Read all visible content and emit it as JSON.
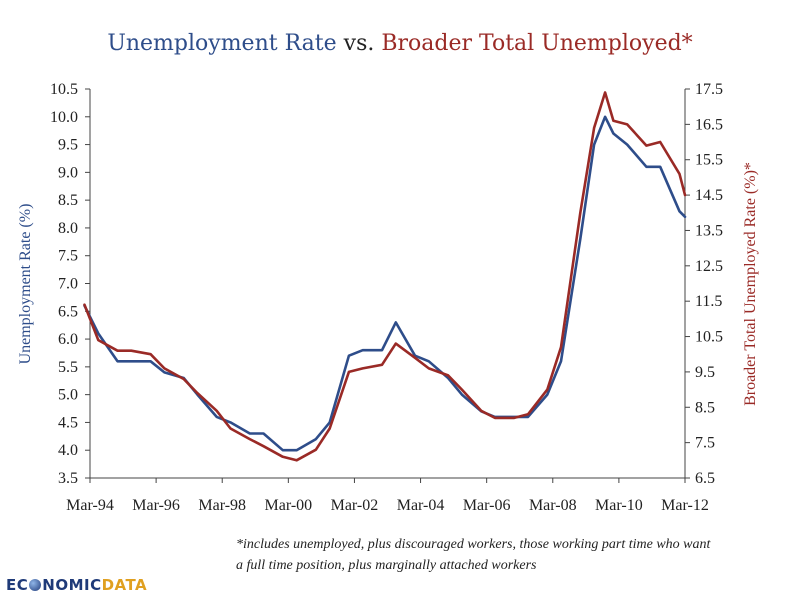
{
  "chart_data": {
    "type": "line",
    "title_part1": "Unemployment Rate",
    "title_mid": " vs. ",
    "title_part2": "Broader Total Unemployed*",
    "ylabel_left": "Unemployment Rate (%)",
    "ylabel_right": "Broader Total Unemployed Rate (%)*",
    "x_ticks": [
      "Mar-94",
      "Mar-96",
      "Mar-98",
      "Mar-00",
      "Mar-02",
      "Mar-04",
      "Mar-06",
      "Mar-08",
      "Mar-10",
      "Mar-12"
    ],
    "y_left_ticks": [
      "3.5",
      "4.0",
      "4.5",
      "5.0",
      "5.5",
      "6.0",
      "6.5",
      "7.0",
      "7.5",
      "8.0",
      "8.5",
      "9.0",
      "9.5",
      "10.0",
      "10.5"
    ],
    "y_right_ticks": [
      "6.5",
      "7.5",
      "8.5",
      "9.5",
      "10.5",
      "11.5",
      "12.5",
      "13.5",
      "14.5",
      "15.5",
      "16.5",
      "17.5"
    ],
    "ylim_left": [
      3.5,
      10.5
    ],
    "ylim_right": [
      6.5,
      17.5
    ],
    "series": [
      {
        "name": "Unemployment Rate",
        "axis": "left",
        "color": "#2e4d8a",
        "x": [
          "1994-01",
          "1994-06",
          "1995-01",
          "1995-06",
          "1996-01",
          "1996-06",
          "1997-01",
          "1997-06",
          "1998-01",
          "1998-06",
          "1999-01",
          "1999-06",
          "2000-01",
          "2000-06",
          "2001-01",
          "2001-06",
          "2002-01",
          "2002-06",
          "2003-01",
          "2003-06",
          "2004-01",
          "2004-06",
          "2005-01",
          "2005-06",
          "2006-01",
          "2006-06",
          "2007-01",
          "2007-06",
          "2008-01",
          "2008-06",
          "2009-01",
          "2009-06",
          "2009-10",
          "2010-01",
          "2010-06",
          "2011-01",
          "2011-06",
          "2012-01",
          "2012-03"
        ],
        "values": [
          6.6,
          6.1,
          5.6,
          5.6,
          5.6,
          5.4,
          5.3,
          5.0,
          4.6,
          4.5,
          4.3,
          4.3,
          4.0,
          4.0,
          4.2,
          4.5,
          5.7,
          5.8,
          5.8,
          6.3,
          5.7,
          5.6,
          5.3,
          5.0,
          4.7,
          4.6,
          4.6,
          4.6,
          5.0,
          5.6,
          7.8,
          9.5,
          10.0,
          9.7,
          9.5,
          9.1,
          9.1,
          8.3,
          8.2
        ]
      },
      {
        "name": "Broader Total Unemployed",
        "axis": "right",
        "color": "#9a2a26",
        "x": [
          "1994-01",
          "1994-06",
          "1995-01",
          "1995-06",
          "1996-01",
          "1996-06",
          "1997-01",
          "1997-06",
          "1998-01",
          "1998-06",
          "1999-01",
          "1999-06",
          "2000-01",
          "2000-06",
          "2001-01",
          "2001-06",
          "2002-01",
          "2002-06",
          "2003-01",
          "2003-06",
          "2004-01",
          "2004-06",
          "2005-01",
          "2005-06",
          "2006-01",
          "2006-06",
          "2007-01",
          "2007-06",
          "2008-01",
          "2008-06",
          "2009-01",
          "2009-06",
          "2009-10",
          "2010-01",
          "2010-06",
          "2011-01",
          "2011-06",
          "2012-01",
          "2012-03"
        ],
        "values": [
          11.4,
          10.4,
          10.1,
          10.1,
          10.0,
          9.6,
          9.3,
          8.9,
          8.4,
          7.9,
          7.6,
          7.4,
          7.1,
          7.0,
          7.3,
          7.9,
          9.5,
          9.6,
          9.7,
          10.3,
          9.9,
          9.6,
          9.4,
          9.0,
          8.4,
          8.2,
          8.2,
          8.3,
          9.0,
          10.2,
          14.0,
          16.4,
          17.4,
          16.6,
          16.5,
          15.9,
          16.0,
          15.1,
          14.5
        ]
      }
    ],
    "grid": false,
    "legend": "none"
  },
  "footnote": "*includes unemployed, plus discouraged workers, those working part time who want a full time position, plus marginally attached workers",
  "logo": {
    "part1": "EC",
    "part2": "NOMIC",
    "part3": "DATA"
  },
  "colors": {
    "unemployment": "#2e4d8a",
    "broader": "#9a2a26"
  }
}
